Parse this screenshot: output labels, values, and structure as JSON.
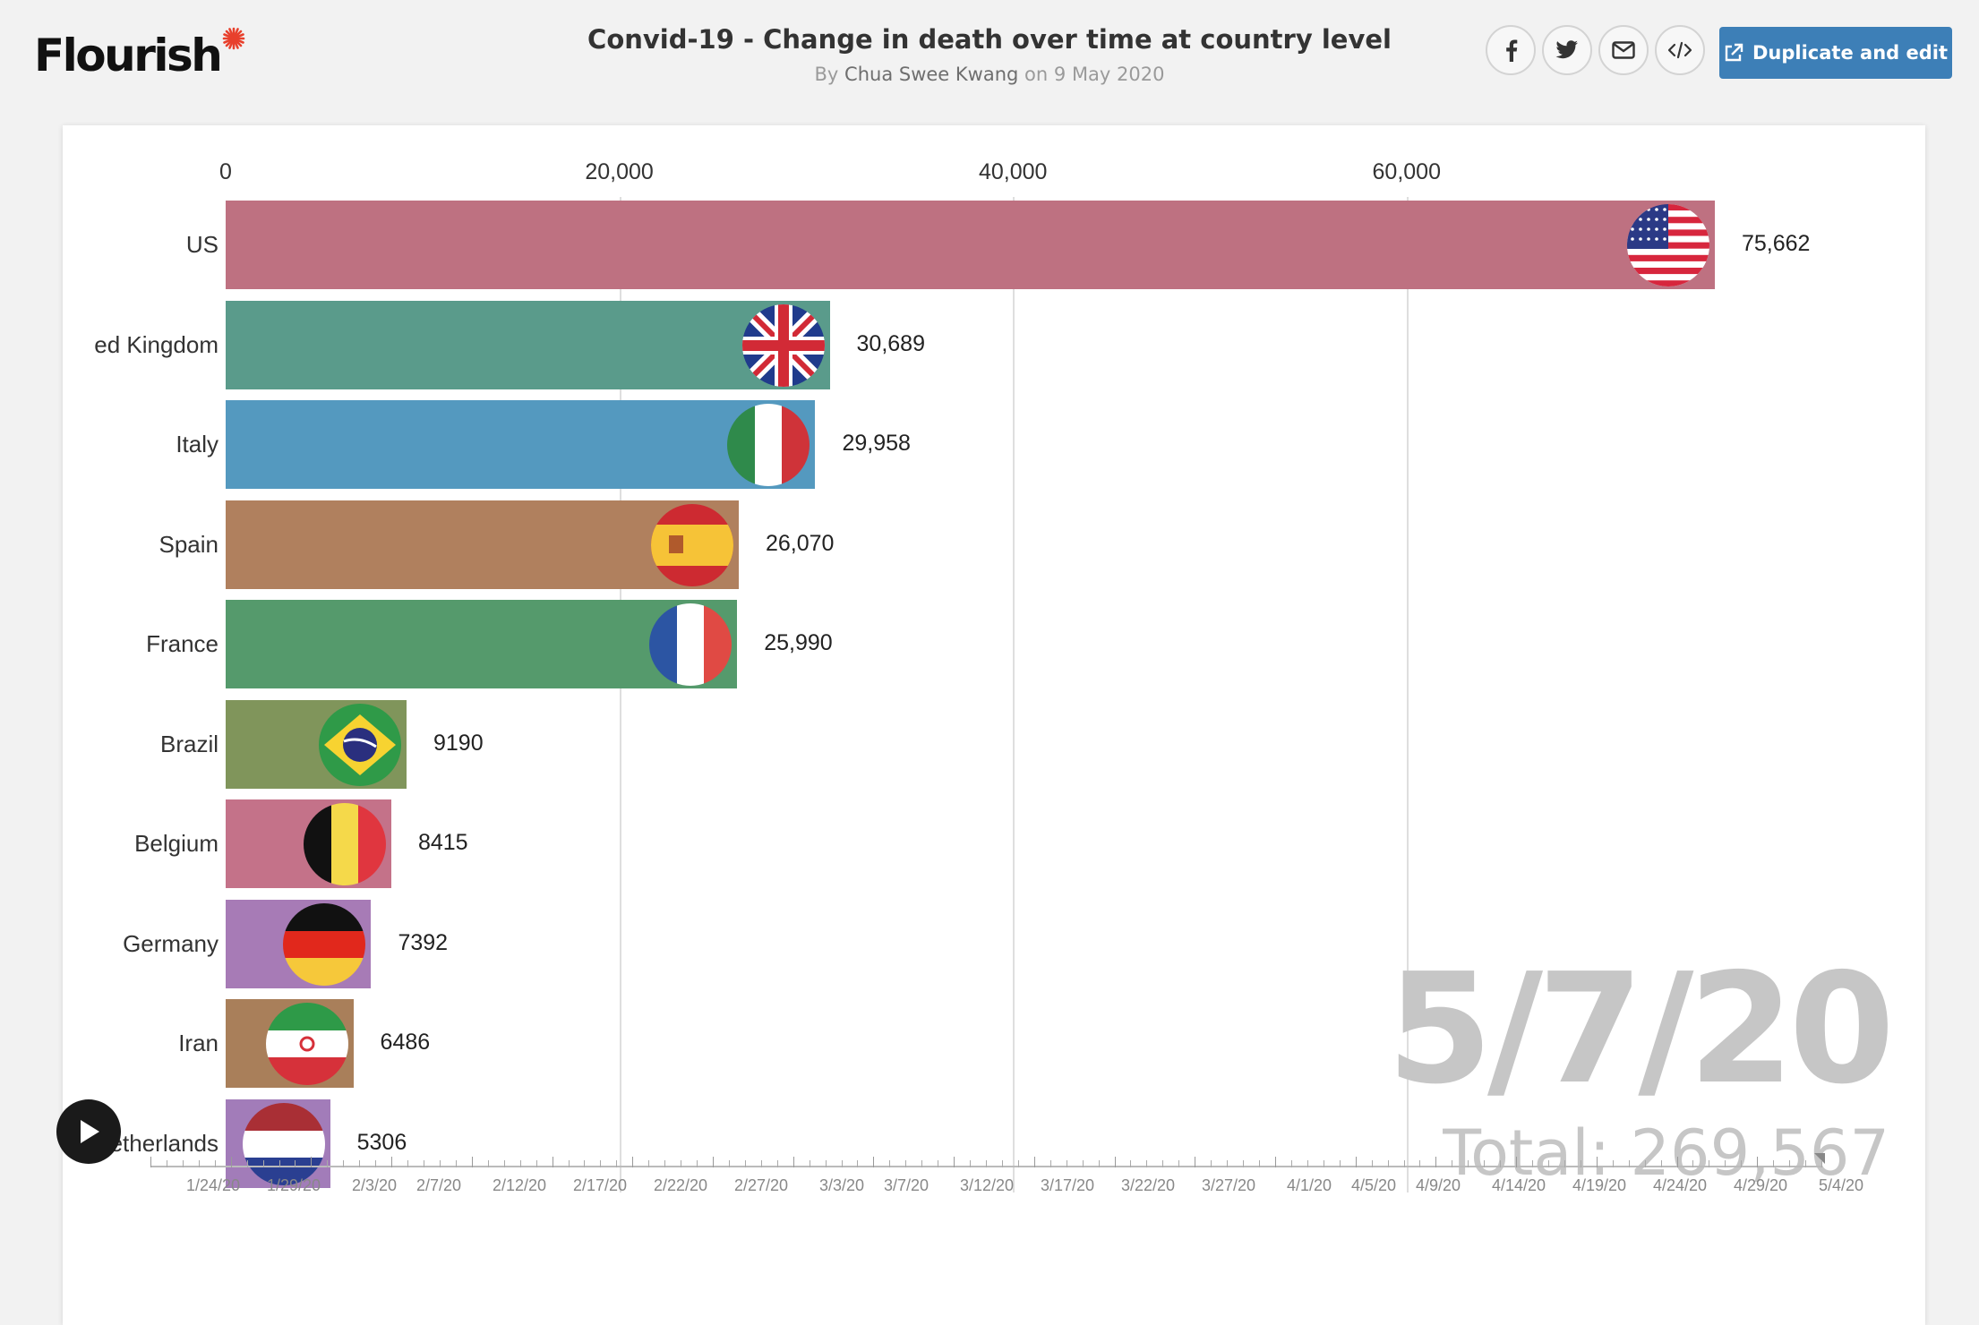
{
  "brand": {
    "logo_text": "Flourish"
  },
  "header": {
    "title": "Convid-19 - Change in death over time at country level",
    "byline_prefix": "By",
    "author": "Chua Swee Kwang",
    "byline_on": "on",
    "date": "9 May 2020"
  },
  "share": {
    "buttons": [
      {
        "name": "facebook-icon"
      },
      {
        "name": "twitter-icon"
      },
      {
        "name": "email-icon"
      },
      {
        "name": "embed-code-icon"
      }
    ],
    "duplicate_label": "Duplicate and edit"
  },
  "colors": {
    "us": "#be7181",
    "uk": "#5a9b8b",
    "italy": "#5499bf",
    "spain": "#b0805e",
    "france": "#559a6c",
    "brazil": "#80955b",
    "belgium": "#c47289",
    "germany": "#a77bb6",
    "iran": "#a97f5a",
    "netherlands": "#a27cb9"
  },
  "chart_data": {
    "type": "bar",
    "orientation": "horizontal",
    "title": "Convid-19 - Change in death over time at country level",
    "xlabel": "",
    "ylabel": "",
    "xlim": [
      0,
      75662
    ],
    "x_ticks": [
      "0",
      "20,000",
      "40,000",
      "60,000"
    ],
    "x_tick_values": [
      0,
      20000,
      40000,
      60000
    ],
    "grid": true,
    "categories": [
      "US",
      "United Kingdom",
      "Italy",
      "Spain",
      "France",
      "Brazil",
      "Belgium",
      "Germany",
      "Iran",
      "Netherlands"
    ],
    "labels_shown": [
      "US",
      "ed Kingdom",
      "Italy",
      "Spain",
      "France",
      "Brazil",
      "Belgium",
      "Germany",
      "Iran",
      "letherlands"
    ],
    "values": [
      75662,
      30689,
      29958,
      26070,
      25990,
      9190,
      8415,
      7392,
      6486,
      5306
    ],
    "value_labels": [
      "75,662",
      "30,689",
      "29,958",
      "26,070",
      "25,990",
      "9190",
      "8415",
      "7392",
      "6486",
      "5306"
    ],
    "flags": [
      "us",
      "uk",
      "italy",
      "spain",
      "france",
      "brazil",
      "belgium",
      "germany",
      "iran",
      "netherlands"
    ],
    "current_date": "5/7/20",
    "total_label": "Total: 269,567"
  },
  "timeline": {
    "play_label": "play-icon",
    "labels": [
      "1/24/20",
      "1/29/20",
      "2/3/20",
      "2/7/20",
      "2/12/20",
      "2/17/20",
      "2/22/20",
      "2/27/20",
      "3/3/20",
      "3/7/20",
      "3/12/20",
      "3/17/20",
      "3/22/20",
      "3/27/20",
      "4/1/20",
      "4/5/20",
      "4/9/20",
      "4/14/20",
      "4/19/20",
      "4/24/20",
      "4/29/20",
      "5/4/20"
    ],
    "position": 1.0
  }
}
